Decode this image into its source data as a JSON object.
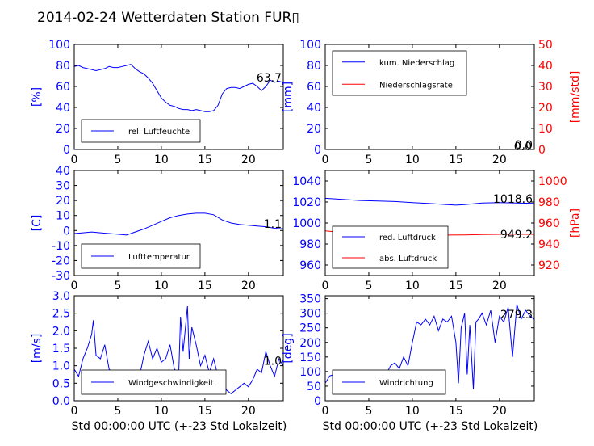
{
  "figure": {
    "title": "2014-02-24 Wetterdaten Station FUR▯",
    "xlabel": "Std 00:00:00 UTC (+-23 Std Lokalzeit)"
  },
  "colors": {
    "primary": "#0000ff",
    "secondary": "#ff0000",
    "light": "#8080ff"
  },
  "chart_data": [
    {
      "id": "humidity",
      "type": "line",
      "ylabel": "[%]",
      "xlim": [
        0,
        24
      ],
      "ylim": [
        0,
        100
      ],
      "xticks": [
        0,
        5,
        10,
        15,
        20
      ],
      "yticks": [
        0,
        20,
        40,
        60,
        80,
        100
      ],
      "legend_loc": "lower-left",
      "last_value_label": "63.7",
      "series": [
        {
          "name": "rel. Luftfeuchte",
          "color": "#0000ff",
          "x": [
            0,
            0.5,
            1,
            1.5,
            2,
            2.5,
            3,
            3.5,
            4,
            4.5,
            5,
            5.5,
            6,
            6.5,
            7,
            7.5,
            8,
            8.5,
            9,
            9.5,
            10,
            10.5,
            11,
            11.5,
            12,
            12.5,
            13,
            13.5,
            14,
            14.5,
            15,
            15.5,
            16,
            16.5,
            17,
            17.5,
            18,
            18.5,
            19,
            19.5,
            20,
            20.5,
            21,
            21.5,
            22,
            22.5,
            23,
            23.5,
            24
          ],
          "y": [
            79,
            80,
            78,
            77,
            76,
            75,
            76,
            77,
            79,
            78,
            78,
            79,
            80,
            81,
            77,
            74,
            72,
            68,
            63,
            56,
            49,
            45,
            42,
            41,
            39,
            38,
            38,
            37,
            38,
            37,
            36,
            36,
            37,
            42,
            53,
            58,
            59,
            59,
            58,
            60,
            62,
            63,
            60,
            56,
            60,
            66,
            64,
            65,
            63.7
          ]
        }
      ]
    },
    {
      "id": "precipitation",
      "type": "line",
      "ylabel": "[mm]",
      "ylabel_right": "[mm/std]",
      "xlim": [
        0,
        24
      ],
      "ylim": [
        0,
        100
      ],
      "ylim_right": [
        0,
        50
      ],
      "xticks": [
        0,
        5,
        10,
        15,
        20
      ],
      "yticks": [
        0,
        20,
        40,
        60,
        80,
        100
      ],
      "yticks_right": [
        0,
        10,
        20,
        30,
        40,
        50
      ],
      "legend_loc": "upper-left",
      "last_value_label": "0.0",
      "last_value_label_right": "0.0",
      "series": [
        {
          "name": "kum. Niederschlag",
          "color": "#0000ff",
          "axis": "left",
          "x": [
            0,
            24
          ],
          "y": [
            0,
            0
          ]
        },
        {
          "name": "Niederschlagsrate",
          "color": "#ff0000",
          "axis": "right",
          "x": [
            0,
            24
          ],
          "y": [
            0,
            0
          ]
        }
      ]
    },
    {
      "id": "temperature",
      "type": "line",
      "ylabel": "[C]",
      "xlim": [
        0,
        24
      ],
      "ylim": [
        -30,
        40
      ],
      "xticks": [
        0,
        5,
        10,
        15,
        20
      ],
      "yticks": [
        -30,
        -20,
        -10,
        0,
        10,
        20,
        30,
        40
      ],
      "legend_loc": "lower-left",
      "last_value_label": "1.1",
      "series": [
        {
          "name": "Lufttemperatur",
          "color": "#0000ff",
          "x": [
            0,
            1,
            2,
            3,
            4,
            5,
            6,
            7,
            8,
            9,
            10,
            11,
            12,
            13,
            14,
            15,
            16,
            17,
            18,
            19,
            20,
            21,
            22,
            23,
            24
          ],
          "y": [
            -2,
            -1.5,
            -1,
            -1.5,
            -2,
            -2.5,
            -3,
            -1,
            1,
            3.5,
            6,
            8.5,
            10,
            11,
            11.5,
            11.5,
            10.5,
            7,
            5,
            4,
            3.5,
            3,
            2.5,
            1.5,
            1.1
          ]
        }
      ]
    },
    {
      "id": "pressure",
      "type": "line",
      "ylabel_right": "[hPa]",
      "xlim": [
        0,
        24
      ],
      "ylim": [
        950,
        1050
      ],
      "ylim_right": [
        910,
        1010
      ],
      "xticks": [
        0,
        5,
        10,
        15,
        20
      ],
      "yticks": [
        960,
        980,
        1000,
        1020,
        1040
      ],
      "yticks_right": [
        920,
        940,
        960,
        980,
        1000
      ],
      "legend_loc": "lower-left",
      "last_value_label": "1018.6",
      "last_value_label_right": "949.2",
      "series": [
        {
          "name": "red. Luftdruck",
          "color": "#0000ff",
          "axis": "left",
          "x": [
            0,
            2,
            4,
            6,
            8,
            10,
            12,
            14,
            15,
            16,
            18,
            20,
            22,
            24
          ],
          "y": [
            1023.5,
            1022.5,
            1021.5,
            1021,
            1020.5,
            1019.5,
            1018.5,
            1017.5,
            1017,
            1017.5,
            1019,
            1019.5,
            1019,
            1018.6
          ]
        },
        {
          "name": "abs. Luftdruck",
          "color": "#ff0000",
          "axis": "right",
          "x": [
            0,
            2,
            4,
            6,
            8,
            10,
            12,
            14,
            16,
            18,
            20,
            22,
            24
          ],
          "y": [
            952.5,
            951,
            950,
            949.5,
            949,
            948.8,
            948.7,
            948.5,
            948.7,
            949,
            949.2,
            949.3,
            949.2
          ]
        }
      ]
    },
    {
      "id": "wind-speed",
      "type": "line",
      "ylabel": "[m/s]",
      "xlim": [
        0,
        24
      ],
      "ylim": [
        0,
        3
      ],
      "xticks": [
        0,
        5,
        10,
        15,
        20
      ],
      "yticks": [
        0.0,
        0.5,
        1.0,
        1.5,
        2.0,
        2.5,
        3.0
      ],
      "legend_loc": "lower-left",
      "last_value_label": "1.0",
      "series": [
        {
          "name": "Windgeschwindigkeit",
          "color": "#0000ff",
          "x": [
            0,
            0.5,
            1,
            1.5,
            2,
            2.2,
            2.5,
            3,
            3.5,
            4,
            4.5,
            5,
            5.5,
            6,
            6.5,
            7,
            7.5,
            8,
            8.5,
            9,
            9.5,
            10,
            10.5,
            11,
            11.5,
            12,
            12.2,
            12.5,
            13,
            13.2,
            13.5,
            14,
            14.5,
            15,
            15.5,
            16,
            16.5,
            17,
            17.5,
            18,
            18.5,
            19,
            19.5,
            20,
            20.5,
            21,
            21.5,
            22,
            22.5,
            23,
            23.5,
            24
          ],
          "y": [
            0.9,
            0.7,
            1.2,
            1.5,
            1.9,
            2.3,
            1.3,
            1.2,
            1.6,
            0.9,
            0.8,
            0.7,
            0.6,
            0.6,
            0.7,
            0.8,
            0.7,
            1.3,
            1.7,
            1.2,
            1.5,
            1.1,
            1.2,
            1.6,
            0.9,
            0.8,
            2.4,
            1.4,
            2.7,
            1.2,
            2.1,
            1.6,
            1.0,
            1.3,
            0.8,
            1.2,
            0.7,
            0.5,
            0.3,
            0.2,
            0.3,
            0.4,
            0.5,
            0.4,
            0.6,
            0.9,
            0.8,
            1.4,
            1.0,
            0.7,
            1.2,
            1.0
          ]
        }
      ]
    },
    {
      "id": "wind-direction",
      "type": "line",
      "ylabel": "[deg]",
      "xlim": [
        0,
        24
      ],
      "ylim": [
        0,
        360
      ],
      "xticks": [
        0,
        5,
        10,
        15,
        20
      ],
      "yticks": [
        0,
        50,
        100,
        150,
        200,
        250,
        300,
        350
      ],
      "legend_loc": "lower-left",
      "last_value_label": "279.3",
      "series": [
        {
          "name": "Windrichtung",
          "color": "#0000ff",
          "x": [
            0,
            0.5,
            1,
            1.5,
            2,
            3,
            4,
            5,
            5.5,
            6,
            6.5,
            7,
            7.5,
            8,
            8.5,
            9,
            9.5,
            10,
            10.5,
            11,
            11.5,
            12,
            12.5,
            13,
            13.5,
            14,
            14.5,
            15,
            15.3,
            15.6,
            16,
            16.3,
            16.6,
            17,
            17.3,
            17.6,
            18,
            18.5,
            19,
            19.5,
            20,
            20.5,
            21,
            21.5,
            22,
            22.5,
            23,
            23.5,
            24
          ],
          "y": [
            60,
            85,
            90,
            95,
            90,
            85,
            80,
            75,
            60,
            45,
            70,
            90,
            120,
            130,
            110,
            150,
            120,
            200,
            270,
            260,
            280,
            260,
            290,
            240,
            280,
            270,
            290,
            200,
            60,
            250,
            300,
            90,
            260,
            40,
            270,
            280,
            300,
            260,
            310,
            200,
            290,
            270,
            320,
            150,
            330,
            280,
            310,
            290,
            279.3
          ]
        }
      ]
    }
  ]
}
